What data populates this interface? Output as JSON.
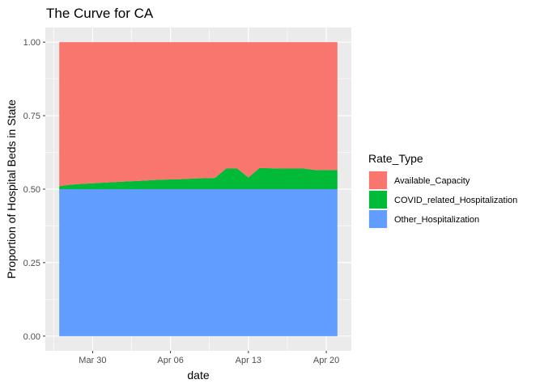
{
  "chart_data": {
    "type": "area",
    "stacked": true,
    "title": "The Curve for CA",
    "xlabel": "date",
    "ylabel": "Proportion of Hospital Beds in State",
    "x": [
      "Mar 27",
      "Mar 28",
      "Mar 29",
      "Mar 30",
      "Mar 31",
      "Apr 01",
      "Apr 02",
      "Apr 03",
      "Apr 04",
      "Apr 05",
      "Apr 06",
      "Apr 07",
      "Apr 08",
      "Apr 09",
      "Apr 10",
      "Apr 11",
      "Apr 12",
      "Apr 13",
      "Apr 14",
      "Apr 15",
      "Apr 16",
      "Apr 17",
      "Apr 18",
      "Apr 19",
      "Apr 20",
      "Apr 21"
    ],
    "x_ticks": [
      "Mar 30",
      "Apr 06",
      "Apr 13",
      "Apr 20"
    ],
    "ylim": [
      0,
      1
    ],
    "y_ticks": [
      "0.00",
      "0.25",
      "0.50",
      "0.75",
      "1.00"
    ],
    "grid": true,
    "legend": {
      "title": "Rate_Type",
      "placement": "right"
    },
    "series": [
      {
        "name": "Other_Hospitalization",
        "color": "#619CFF",
        "values": [
          0.5,
          0.5,
          0.5,
          0.5,
          0.5,
          0.5,
          0.5,
          0.5,
          0.5,
          0.5,
          0.5,
          0.5,
          0.5,
          0.5,
          0.5,
          0.5,
          0.5,
          0.5,
          0.5,
          0.5,
          0.5,
          0.5,
          0.5,
          0.5,
          0.5,
          0.5
        ]
      },
      {
        "name": "COVID_related_Hospitalization",
        "color": "#00BA38",
        "values": [
          0.01,
          0.015,
          0.018,
          0.02,
          0.022,
          0.024,
          0.026,
          0.028,
          0.03,
          0.032,
          0.033,
          0.034,
          0.036,
          0.037,
          0.038,
          0.07,
          0.07,
          0.04,
          0.072,
          0.071,
          0.07,
          0.07,
          0.07,
          0.065,
          0.065,
          0.065
        ]
      },
      {
        "name": "Available_Capacity",
        "color": "#F8766D",
        "values": [
          0.49,
          0.485,
          0.482,
          0.48,
          0.478,
          0.476,
          0.474,
          0.472,
          0.47,
          0.468,
          0.467,
          0.466,
          0.464,
          0.463,
          0.462,
          0.43,
          0.43,
          0.46,
          0.428,
          0.429,
          0.43,
          0.43,
          0.43,
          0.435,
          0.435,
          0.435
        ]
      }
    ]
  }
}
